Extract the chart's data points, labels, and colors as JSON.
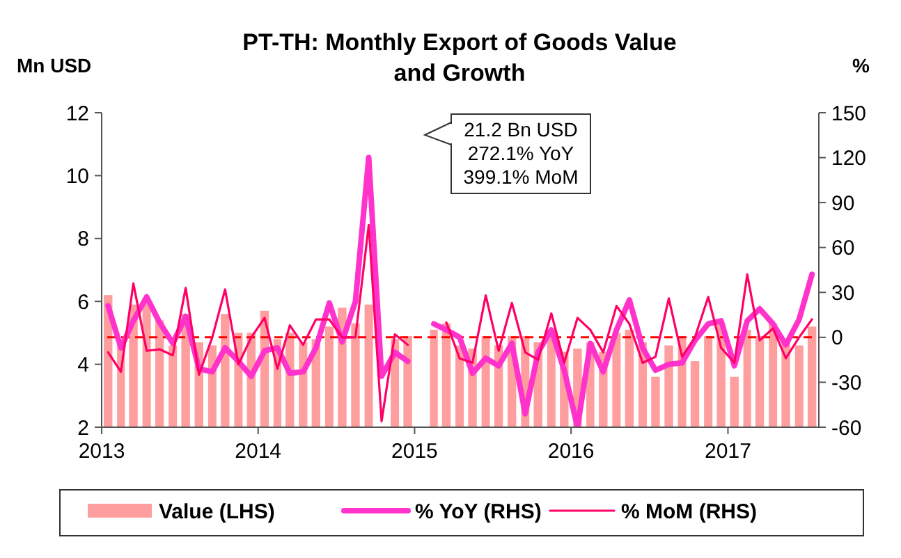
{
  "chart_data": {
    "type": "bar",
    "title": "PT-TH: Monthly Export of Goods Value and Growth",
    "ylabel": "Mn USD",
    "y2label": "%",
    "x": [
      "2013-01-16",
      "2013-02-15",
      "2013-03-16",
      "2013-04-16",
      "2013-05-16",
      "2013-06-16",
      "2013-07-16",
      "2013-08-16",
      "2013-09-16",
      "2013-10-16",
      "2013-11-16",
      "2013-12-16",
      "2014-01-16",
      "2014-02-15",
      "2014-03-16",
      "2014-04-16",
      "2014-05-16",
      "2014-06-16",
      "2014-07-16",
      "2014-08-16",
      "2014-09-16",
      "2014-10-16",
      "2014-11-16",
      "2014-12-16",
      "2015-01-16",
      "2015-02-15",
      "2015-03-16",
      "2015-04-16",
      "2015-05-16",
      "2015-06-16",
      "2015-07-16",
      "2015-08-16",
      "2015-09-16",
      "2015-10-16",
      "2015-11-16",
      "2015-12-16",
      "2016-01-16",
      "2016-02-15",
      "2016-03-16",
      "2016-04-16",
      "2016-05-16",
      "2016-06-16",
      "2016-07-16",
      "2016-08-16",
      "2016-09-16",
      "2016-10-16",
      "2016-11-16",
      "2016-12-16",
      "2017-01-16",
      "2017-02-15",
      "2017-03-16",
      "2017-04-16",
      "2017-05-16",
      "2017-06-16",
      "2017-07-16"
    ],
    "series": [
      {
        "name": "Value (LHS)",
        "color": "#ff9e9e",
        "values": [
          6.2,
          4.8,
          5.9,
          6.0,
          5.4,
          4.6,
          5.6,
          4.7,
          4.6,
          5.6,
          5.0,
          5.0,
          5.7,
          4.8,
          5.0,
          4.7,
          4.8,
          5.2,
          5.8,
          5.3,
          5.9,
          null,
          4.8,
          4.9,
          null,
          5.1,
          5.3,
          4.6,
          4.5,
          4.9,
          4.6,
          4.9,
          4.9,
          4.7,
          5.1,
          4.4,
          4.5,
          4.7,
          4.4,
          5.0,
          5.1,
          4.7,
          3.6,
          4.6,
          4.9,
          4.1,
          4.9,
          5.3,
          3.6,
          5.1,
          4.9,
          5.3,
          4.8,
          4.6,
          5.2
        ]
      },
      {
        "name": "% YoY (RHS)",
        "type": "line",
        "axis": "y2",
        "color": "#ff33cc",
        "values": [
          21,
          -7,
          11,
          27,
          10,
          -4,
          14,
          -21,
          -23,
          -7,
          -16,
          -26,
          -9,
          -7,
          -24,
          -23,
          -7,
          23,
          -3,
          24,
          120,
          -26,
          -10,
          -16,
          null,
          9,
          5,
          0,
          -24,
          -14,
          -19,
          -4,
          -51,
          -10,
          5,
          -22,
          -60,
          -4,
          -23,
          5,
          25,
          -7,
          -22,
          -18,
          -17,
          -2,
          9,
          11,
          -19,
          11,
          19,
          9,
          -5,
          12,
          42
        ]
      },
      {
        "name": "% MoM (RHS)",
        "type": "line",
        "axis": "y2",
        "color": "#ff0066",
        "values": [
          -10,
          -23,
          36,
          -9,
          -8,
          -12,
          33,
          -25,
          0,
          32,
          -18,
          0,
          13,
          -21,
          8,
          -5,
          12,
          12,
          0,
          0,
          75,
          -56,
          2,
          -5,
          null,
          null,
          10,
          -14,
          -17,
          28,
          -9,
          23,
          -10,
          -15,
          16,
          -17,
          13,
          5,
          -10,
          21,
          9,
          -17,
          -13,
          26,
          -13,
          0,
          27,
          -7,
          -17,
          42,
          -2,
          6,
          -14,
          0,
          12
        ]
      }
    ],
    "xlim": [
      "2013-01",
      "2017-08"
    ],
    "xticks": [
      "2013",
      "2014",
      "2015",
      "2016",
      "2017"
    ],
    "ylim": [
      2,
      12
    ],
    "yticks": [
      2,
      4,
      6,
      8,
      10,
      12
    ],
    "y2lim": [
      -60,
      150
    ],
    "y2ticks": [
      -60,
      -30,
      0,
      30,
      60,
      90,
      120,
      150
    ],
    "ref_lines": [
      {
        "axis": "y2",
        "value": 0,
        "color": "#ff0000",
        "line_style": "dashed"
      }
    ],
    "annotations": [
      "21.2 Bn USD\n272.1% YoY\n399.1% MoM"
    ],
    "grid": false,
    "legend": "bottom"
  }
}
